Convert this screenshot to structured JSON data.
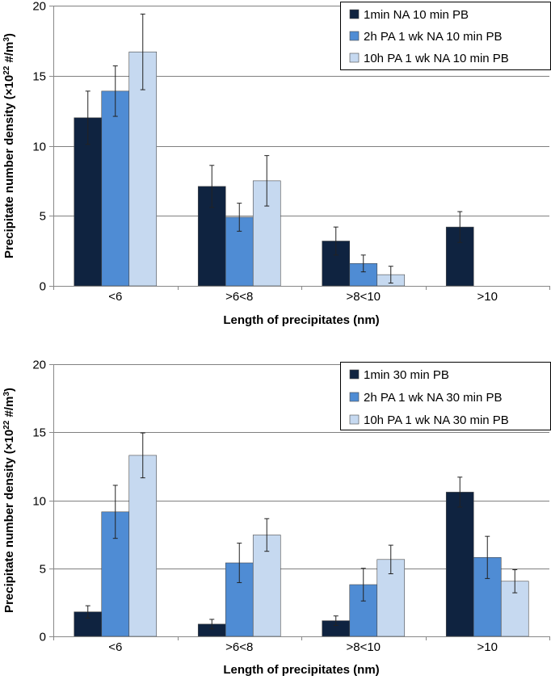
{
  "colors": {
    "s1": "#0f2340",
    "s2": "#4f8cd4",
    "s3": "#c6d9f0",
    "grid": "#808080",
    "axis": "#888888",
    "error": "#222222"
  },
  "chart_data": [
    {
      "type": "bar",
      "categories": [
        "<6",
        ">6<8",
        ">8<10",
        ">10"
      ],
      "xlabel": "Length of precipitates (nm)",
      "ylabel": {
        "main": "Precipitate number density (×10",
        "exp1": "22",
        "mid": " #/m",
        "exp2": "3",
        "end": ")"
      },
      "ylim": [
        0,
        20
      ],
      "yticks": [
        0,
        5,
        10,
        15,
        20
      ],
      "grid": true,
      "legend": "top-right",
      "series": [
        {
          "name": "1min NA 10 min PB",
          "values": [
            12.0,
            7.1,
            3.2,
            4.2
          ],
          "errors": [
            1.9,
            1.5,
            1.0,
            1.1
          ]
        },
        {
          "name": "2h PA 1 wk NA 10 min PB",
          "values": [
            13.9,
            4.9,
            1.6,
            null
          ],
          "errors": [
            1.8,
            1.0,
            0.6,
            null
          ]
        },
        {
          "name": "10h PA 1 wk NA 10 min PB",
          "values": [
            16.7,
            7.5,
            0.8,
            null
          ],
          "errors": [
            2.7,
            1.8,
            0.6,
            null
          ]
        }
      ]
    },
    {
      "type": "bar",
      "categories": [
        "<6",
        ">6<8",
        ">8<10",
        ">10"
      ],
      "xlabel": "Length of precipitates (nm)",
      "ylabel": {
        "main": "Precipitate number density (×10",
        "exp1": "22",
        "mid": " #/m",
        "exp2": "3",
        "end": ")"
      },
      "ylim": [
        0,
        20
      ],
      "yticks": [
        0,
        5,
        10,
        15,
        20
      ],
      "grid": true,
      "legend": "top-right",
      "series": [
        {
          "name": "1min 30 min PB",
          "values": [
            1.8,
            0.9,
            1.15,
            10.6
          ],
          "errors": [
            0.45,
            0.35,
            0.35,
            1.1
          ]
        },
        {
          "name": "2h PA 1 wk NA 30 min PB",
          "values": [
            9.15,
            5.4,
            3.8,
            5.8
          ],
          "errors": [
            1.95,
            1.45,
            1.2,
            1.55
          ]
        },
        {
          "name": "10h PA 1 wk NA 30 min PB",
          "values": [
            13.3,
            7.45,
            5.65,
            4.05
          ],
          "errors": [
            1.65,
            1.2,
            1.05,
            0.85
          ]
        }
      ]
    }
  ]
}
